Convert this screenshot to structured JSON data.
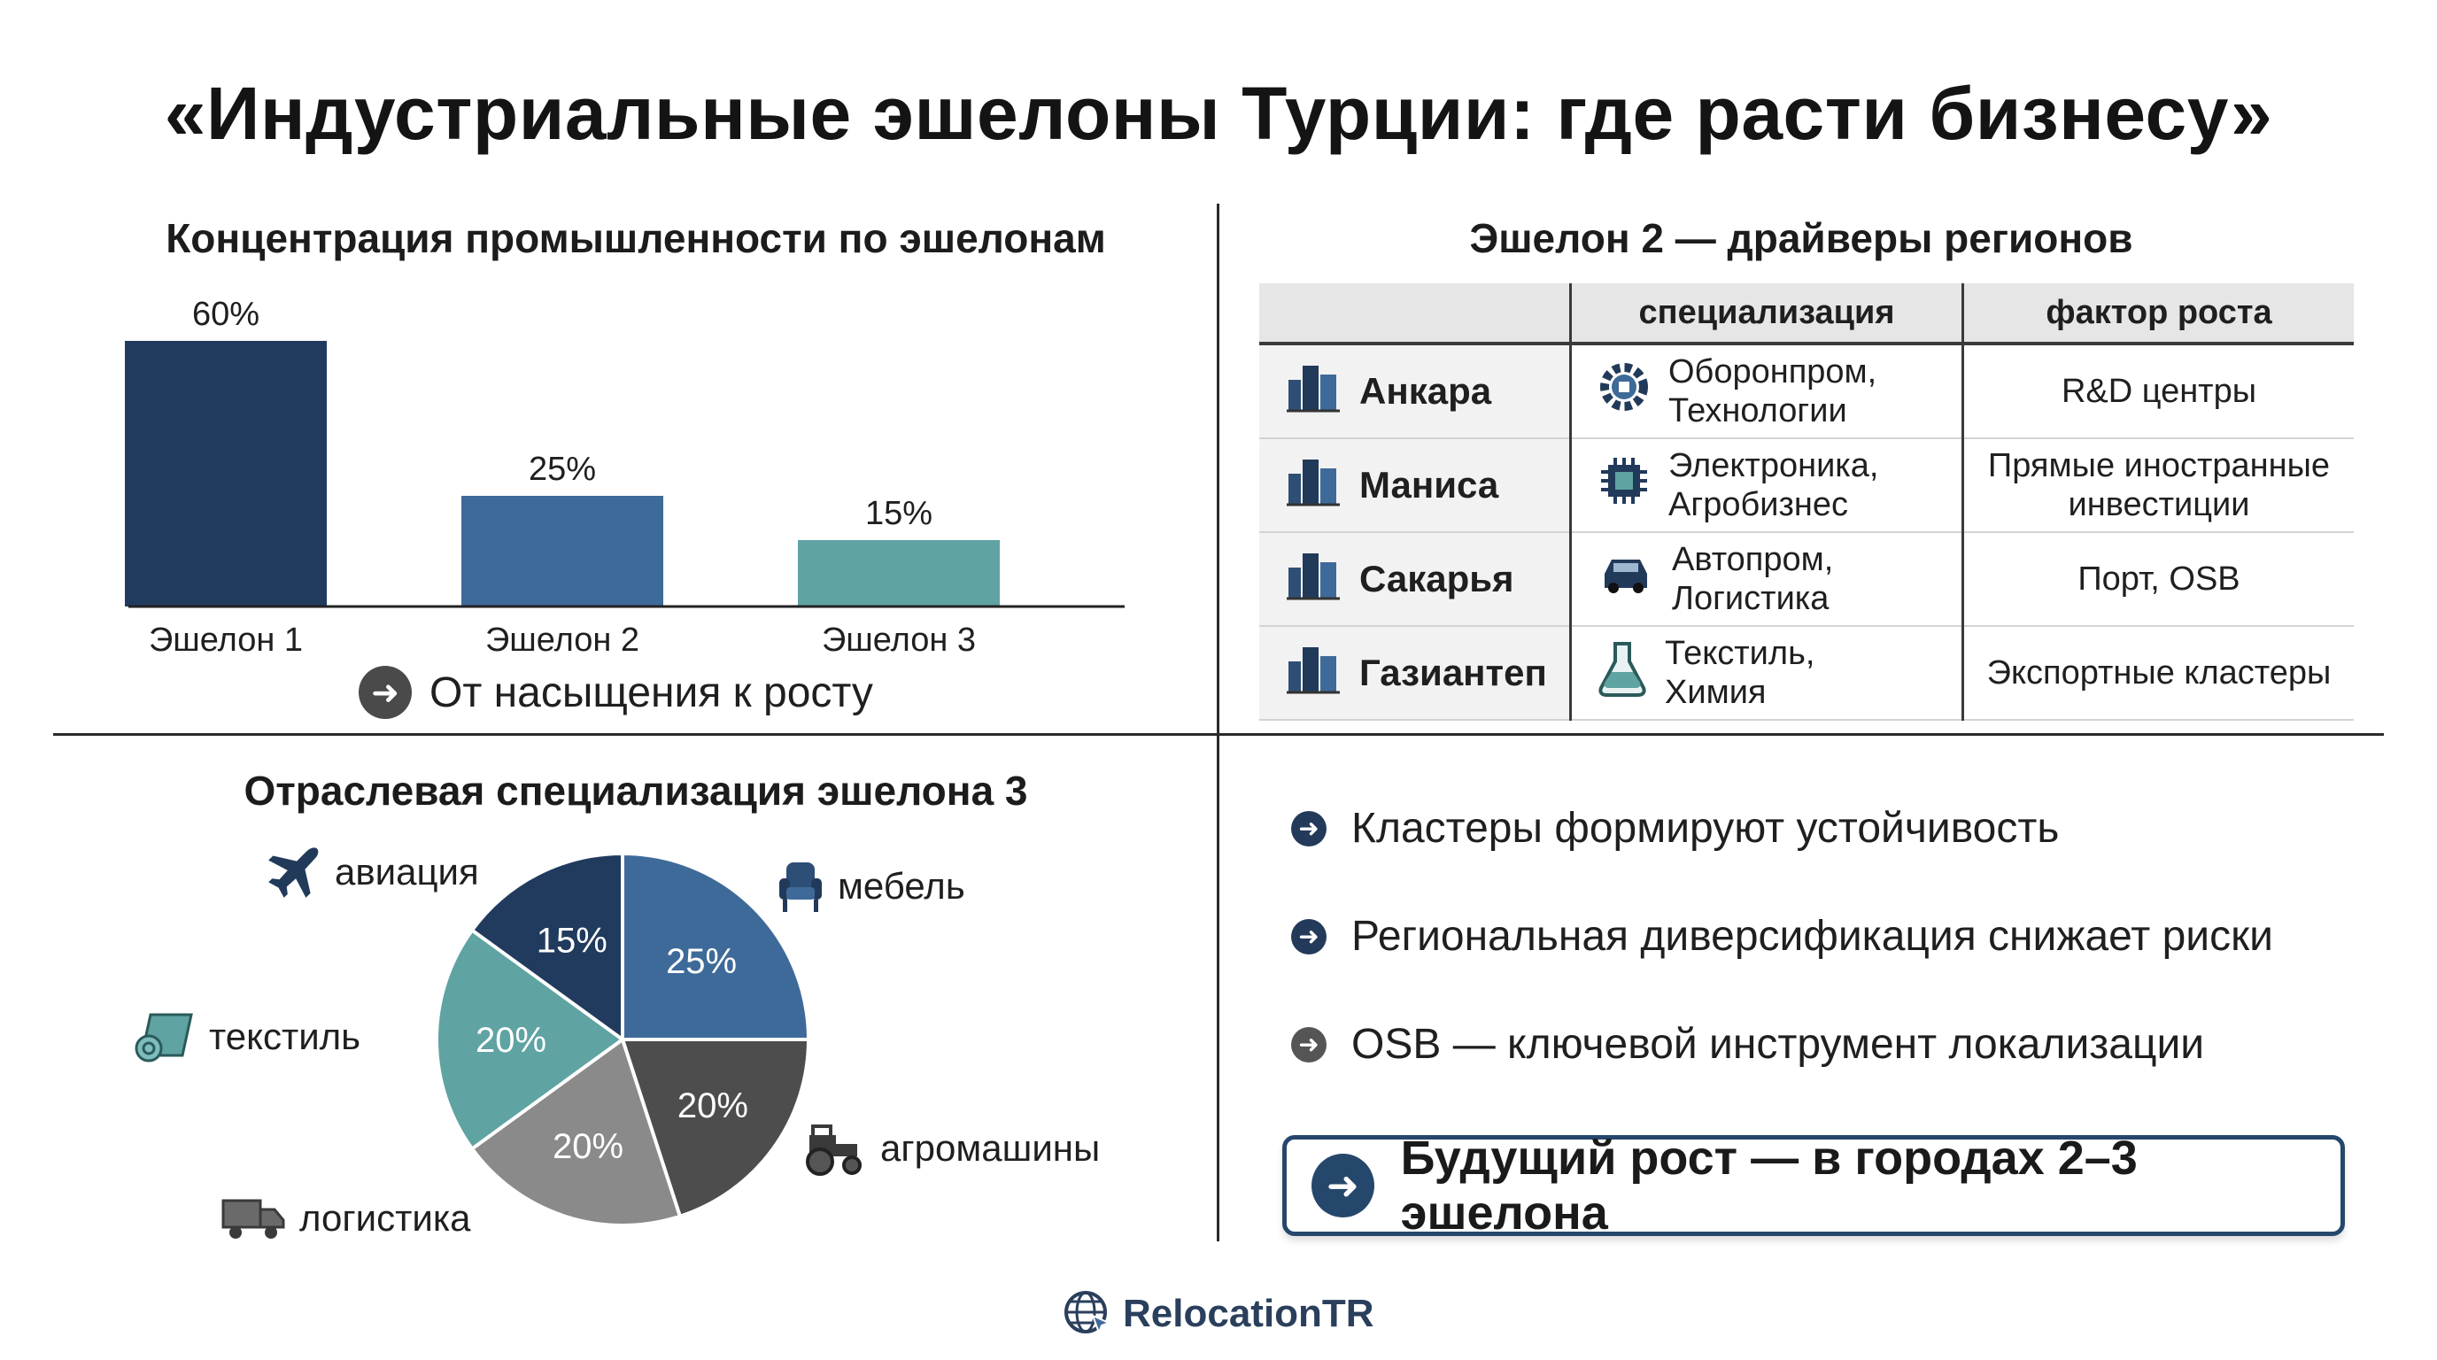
{
  "title": "«Индустриальные эшелоны Турции: где расти бизнесу»",
  "bar_section": {
    "title": "Концентрация промышленности по эшелонам",
    "conclusion": "От насыщения к росту"
  },
  "table_section": {
    "title": "Эшелон 2 — драйверы регионов",
    "headers": [
      "",
      "специализация",
      "фактор роста"
    ],
    "rows": [
      {
        "city": "Анкара",
        "city_icon": "city-buildings-icon",
        "spec_icon": "gear-chip-icon",
        "spec_lines": [
          "Оборонпром,",
          "Технологии"
        ],
        "factor_lines": [
          "R&D центры"
        ]
      },
      {
        "city": "Маниса",
        "city_icon": "city-buildings-icon",
        "spec_icon": "microchip-icon",
        "spec_lines": [
          "Электроника,",
          "Агробизнес"
        ],
        "factor_lines": [
          "Прямые иностранные",
          "инвестиции"
        ]
      },
      {
        "city": "Сакарья",
        "city_icon": "city-buildings-icon",
        "spec_icon": "car-icon",
        "spec_lines": [
          "Автопром,",
          "Логистика"
        ],
        "factor_lines": [
          "Порт, OSB"
        ]
      },
      {
        "city": "Газиантеп",
        "city_icon": "city-buildings-icon",
        "spec_icon": "flask-icon",
        "spec_lines": [
          "Текстиль,",
          "Химия"
        ],
        "factor_lines": [
          "Экспортные кластеры"
        ]
      }
    ]
  },
  "pie_section": {
    "title": "Отраслевая специализация эшелона 3"
  },
  "bullets": [
    {
      "text": "Кластеры формируют устойчивость"
    },
    {
      "text": "Региональная диверсификация снижает риски"
    },
    {
      "text": "OSB — ключевой инструмент локализации"
    }
  ],
  "callout": "Будущий рост — в городах 2–3 эшелона",
  "brand": "RelocationTR",
  "colors": {
    "navy": "#213b5e",
    "blue": "#3e6a99",
    "teal": "#5fa3a3",
    "dark_grey": "#4d4d4d",
    "grey": "#8a8a8a"
  },
  "chart_data": [
    {
      "type": "bar",
      "title": "Концентрация промышленности по эшелонам",
      "categories": [
        "Эшелон 1",
        "Эшелон 2",
        "Эшелон 3"
      ],
      "values": [
        60,
        25,
        15
      ],
      "value_labels": [
        "60%",
        "25%",
        "15%"
      ],
      "colors": [
        "#213b5e",
        "#3e6a99",
        "#5fa3a3"
      ],
      "ylim": [
        0,
        60
      ],
      "grid": false
    },
    {
      "type": "pie",
      "title": "Отраслевая специализация эшелона 3",
      "slices": [
        {
          "label": "мебель",
          "value": 25,
          "pct": "25%",
          "color": "#3e6a99",
          "icon": "armchair-icon"
        },
        {
          "label": "агромашины",
          "value": 20,
          "pct": "20%",
          "color": "#4d4d4d",
          "icon": "tractor-icon"
        },
        {
          "label": "логистика",
          "value": 20,
          "pct": "20%",
          "color": "#8a8a8a",
          "icon": "truck-icon"
        },
        {
          "label": "текстиль",
          "value": 20,
          "pct": "20%",
          "color": "#5fa3a3",
          "icon": "fabric-roll-icon"
        },
        {
          "label": "авиация",
          "value": 15,
          "pct": "15%",
          "color": "#213b5e",
          "icon": "airplane-icon"
        }
      ]
    }
  ]
}
